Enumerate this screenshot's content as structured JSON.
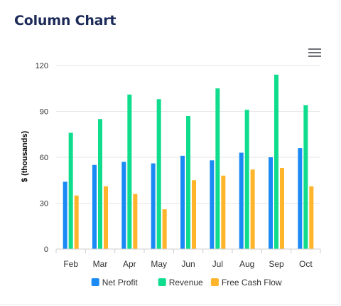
{
  "card": {
    "title": "Column Chart",
    "menu_icon": "hamburger-menu-icon"
  },
  "colors": {
    "title": "#1c2a58",
    "grid": "#e6e6e6",
    "axis_text": "#333333",
    "series": [
      "#1a8af5",
      "#0fdc8c",
      "#ffb52b"
    ]
  },
  "chart_data": {
    "type": "bar",
    "categories": [
      "Feb",
      "Mar",
      "Apr",
      "May",
      "Jun",
      "Jul",
      "Aug",
      "Sep",
      "Oct"
    ],
    "series": [
      {
        "name": "Net Profit",
        "values": [
          44,
          55,
          57,
          56,
          61,
          58,
          63,
          60,
          66
        ]
      },
      {
        "name": "Revenue",
        "values": [
          76,
          85,
          101,
          98,
          87,
          105,
          91,
          114,
          94
        ]
      },
      {
        "name": "Free Cash Flow",
        "values": [
          35,
          41,
          36,
          26,
          45,
          48,
          52,
          53,
          41
        ]
      }
    ],
    "title": "",
    "xlabel": "",
    "ylabel": "$ (thousands)",
    "ylim": [
      0,
      120
    ],
    "yticks": [
      0,
      30,
      60,
      90,
      120
    ],
    "grid": true,
    "legend": "bottom-center"
  }
}
